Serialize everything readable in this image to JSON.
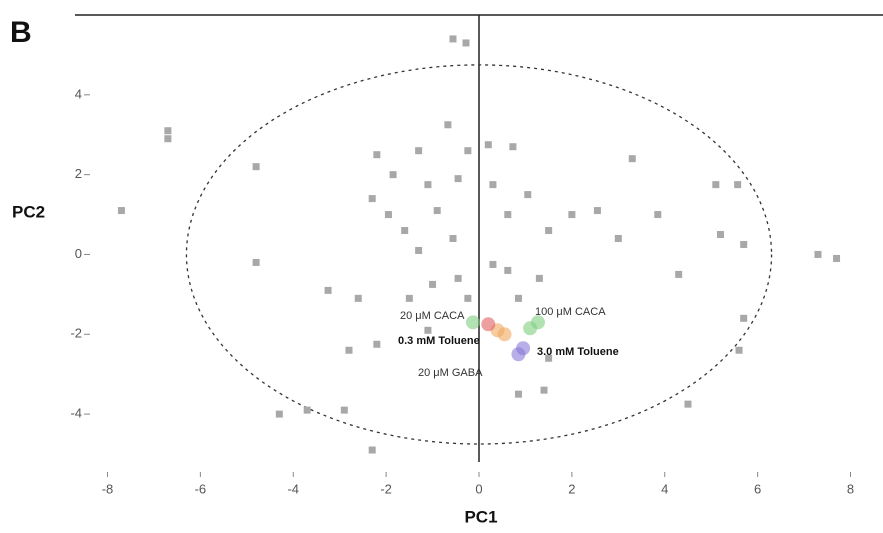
{
  "chart_data": {
    "type": "scatter",
    "panel_label": "B",
    "x_label": "PC1",
    "y_label": "PC2",
    "xlim": [
      -8.7,
      8.7
    ],
    "ylim": [
      -5.2,
      6
    ],
    "xticks": [
      -8,
      -6,
      -4,
      -2,
      0,
      2,
      4,
      6,
      8
    ],
    "yticks": [
      -4,
      -2,
      0,
      2,
      4
    ],
    "ellipse": {
      "cx": 0,
      "cy": 0,
      "rx": 6.3,
      "ry": 4.75
    },
    "series": [
      {
        "color": "#a8a8a8",
        "x": [
          -0.56,
          -0.28,
          -6.7,
          -6.7,
          -7.7,
          -4.8,
          -4.8,
          -2.2,
          -1.85,
          -1.3,
          -1.1,
          -2.3,
          -1.95,
          -1.6,
          -1.3,
          -0.9,
          -0.56,
          -0.45,
          -0.24,
          -0.67,
          0.2,
          0.73,
          0.3,
          0.62,
          1.05,
          1.5,
          2.0,
          2.55,
          3.0,
          3.3,
          3.85,
          5.1,
          5.57,
          5.2,
          5.7,
          7.3,
          7.7,
          4.3,
          5.7,
          5.6,
          4.5,
          -3.25,
          -2.6,
          -2.2,
          -2.8,
          -1.5,
          -1.1,
          -4.3,
          -3.7,
          -2.9,
          -2.3,
          1.4,
          1.5,
          0.85,
          0.62,
          0.85,
          1.3,
          0.3,
          -0.45,
          -0.24,
          -1.0
        ],
        "y": [
          5.4,
          5.3,
          3.1,
          2.9,
          1.1,
          2.2,
          -0.2,
          2.5,
          2.0,
          2.6,
          1.75,
          1.4,
          1.0,
          0.6,
          0.1,
          1.1,
          0.4,
          1.9,
          2.6,
          3.25,
          2.75,
          2.7,
          1.75,
          1.0,
          1.5,
          0.6,
          1.0,
          1.1,
          0.4,
          2.4,
          1.0,
          1.75,
          1.75,
          0.5,
          0.25,
          0,
          -0.1,
          -0.5,
          -1.6,
          -2.4,
          -3.75,
          -0.9,
          -1.1,
          -2.25,
          -2.4,
          -1.1,
          -1.9,
          -4.0,
          -3.9,
          -3.9,
          -4.9,
          -3.4,
          -2.6,
          -3.5,
          -0.4,
          -1.1,
          -0.6,
          -0.25,
          -0.6,
          -1.1,
          -0.75
        ]
      },
      {
        "color": "#7fcf7f",
        "x": [
          -0.13,
          1.27,
          1.1
        ],
        "y": [
          -1.7,
          -1.7,
          -1.85
        ]
      },
      {
        "color": "#f0a860",
        "x": [
          0.4,
          0.55
        ],
        "y": [
          -1.9,
          -2.0
        ]
      },
      {
        "color": "#e06060",
        "x": [
          0.2
        ],
        "y": [
          -1.75
        ]
      },
      {
        "color": "#8878d8",
        "x": [
          0.85,
          0.95
        ],
        "y": [
          -2.5,
          -2.35
        ]
      }
    ],
    "annotations": [
      "20 μM CACA",
      "100 μM CACA",
      "0.3 mM Toluene",
      "3.0 mM Toluene",
      "20 μM GABA"
    ]
  }
}
